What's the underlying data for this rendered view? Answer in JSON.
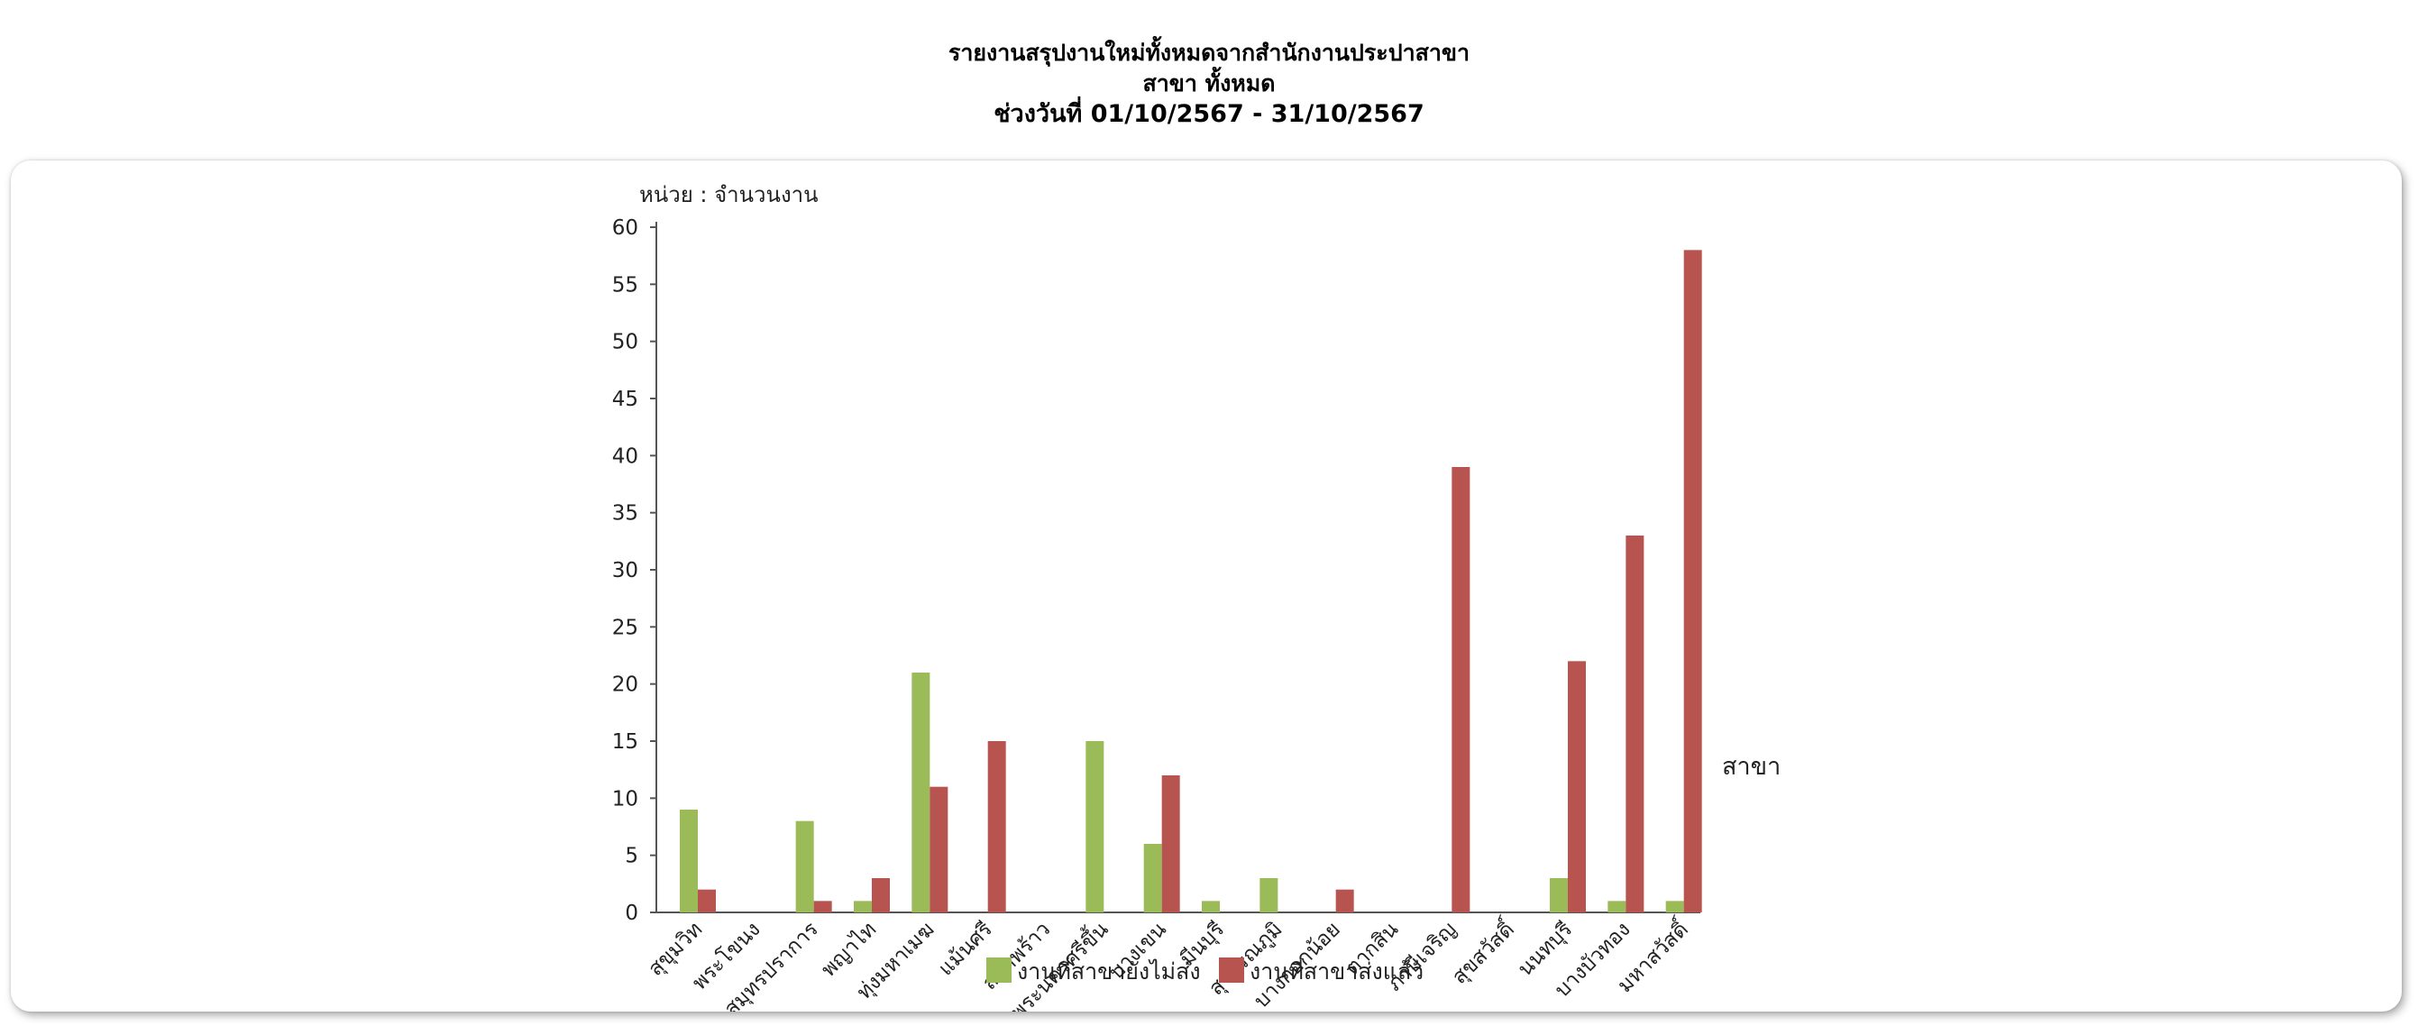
{
  "header": {
    "title": "รายงานสรุปงานใหม่ทั้งหมดจากสำนักงานประปาสาขา",
    "branch_line": "สาขา ทั้งหมด",
    "date_range": "ช่วงวันที่ 01/10/2567 - 31/10/2567"
  },
  "chart_data": {
    "type": "bar",
    "unit_label": "หน่วย : จำนวนงาน",
    "xlabel": "สาขา",
    "ylabel": "",
    "ylim": [
      0,
      60
    ],
    "yticks": [
      0,
      5,
      10,
      15,
      20,
      25,
      30,
      35,
      40,
      45,
      50,
      55,
      60
    ],
    "grid": false,
    "legend_position": "bottom",
    "categories": [
      "สุขุมวิท",
      "พระโขนง",
      "สมุทรปราการ",
      "พญาไท",
      "ทุ่งมหาเมฆ",
      "แม้นศรี",
      "ลาดพร้าว",
      "พระนครศรีขึ้น",
      "บางเขน",
      "มีนบุรี",
      "สุวรรณภูมิ",
      "บางกอกน้อย",
      "ตากสิน",
      "ภาษีเจริญ",
      "สุขสวัสดิ์",
      "นนทบุรี",
      "บางบัวทอง",
      "มหาสวัสดิ์"
    ],
    "series": [
      {
        "name": "งานที่สาขายังไม่ส่ง",
        "color": "#9bbb59",
        "values": [
          9,
          0,
          8,
          1,
          21,
          0,
          0,
          15,
          6,
          1,
          3,
          0,
          0,
          0,
          0,
          3,
          1,
          1
        ]
      },
      {
        "name": "งานที่สาขาส่งแล้ว",
        "color": "#b85450",
        "values": [
          2,
          0,
          1,
          3,
          11,
          15,
          0,
          0,
          12,
          0,
          0,
          2,
          0,
          39,
          0,
          22,
          33,
          58
        ]
      }
    ]
  }
}
